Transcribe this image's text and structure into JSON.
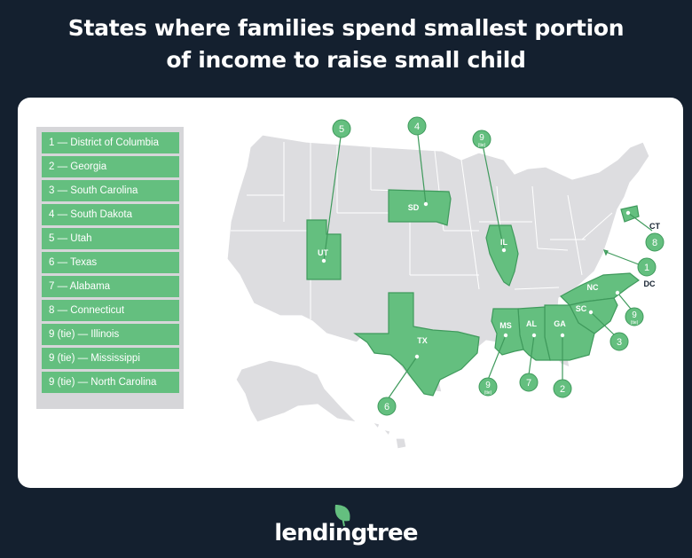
{
  "title_line1": "States where families spend smallest portion",
  "title_line2": "of income to raise small child",
  "legend": [
    "1 — District of Columbia",
    "2 — Georgia",
    "3 — South Carolina",
    "4 — South Dakota",
    "5 — Utah",
    "6 — Texas",
    "7 — Alabama",
    "8 — Connecticut",
    "9 (tie) — Illinois",
    "9 (tie) — Mississippi",
    "9 (tie) — North Carolina"
  ],
  "states": {
    "UT": {
      "label": "UT",
      "rank": "5",
      "tie": ""
    },
    "SD": {
      "label": "SD",
      "rank": "4",
      "tie": ""
    },
    "IL": {
      "label": "IL",
      "rank": "9",
      "tie": "(tie)"
    },
    "CT": {
      "label": "CT",
      "rank": "8",
      "tie": ""
    },
    "DC": {
      "label": "DC",
      "rank": "1",
      "tie": ""
    },
    "NC": {
      "label": "NC",
      "rank": "9",
      "tie": "(tie)"
    },
    "SC": {
      "label": "SC",
      "rank": "3",
      "tie": ""
    },
    "GA": {
      "label": "GA",
      "rank": "2",
      "tie": ""
    },
    "AL": {
      "label": "AL",
      "rank": "7",
      "tie": ""
    },
    "MS": {
      "label": "MS",
      "rank": "9",
      "tie": "(tie)"
    },
    "TX": {
      "label": "TX",
      "rank": "6",
      "tie": ""
    }
  },
  "colors": {
    "background": "#14202f",
    "highlight": "#64bf7f",
    "highlight_stroke": "#3f9a5c",
    "land": "#dddde0",
    "border": "#ffffff"
  },
  "brand": "lendingtree"
}
